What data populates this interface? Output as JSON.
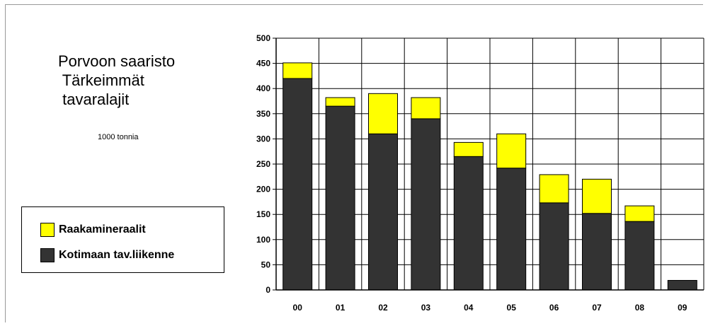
{
  "chart_data": {
    "type": "bar",
    "stacked": true,
    "title_lines": [
      "Porvoon saaristo",
      " Tärkeimmät",
      " tavaralajit"
    ],
    "subtitle": "1000 tonnia",
    "categories": [
      "00",
      "01",
      "02",
      "03",
      "04",
      "05",
      "06",
      "07",
      "08",
      "09"
    ],
    "series": [
      {
        "name": "Kotimaan tav.liikenne",
        "color": "#333333",
        "values": [
          420,
          365,
          310,
          340,
          265,
          242,
          173,
          152,
          136,
          19
        ]
      },
      {
        "name": "Raakamineraalit",
        "color": "#ffff00",
        "values": [
          31,
          17,
          80,
          42,
          28,
          68,
          56,
          68,
          31,
          0
        ]
      }
    ],
    "ylim": [
      0,
      500
    ],
    "yticks": [
      0,
      50,
      100,
      150,
      200,
      250,
      300,
      350,
      400,
      450,
      500
    ],
    "grid": true,
    "legend": {
      "placement": "left",
      "order": [
        "Raakamineraalit",
        "Kotimaan tav.liikenne"
      ]
    }
  }
}
